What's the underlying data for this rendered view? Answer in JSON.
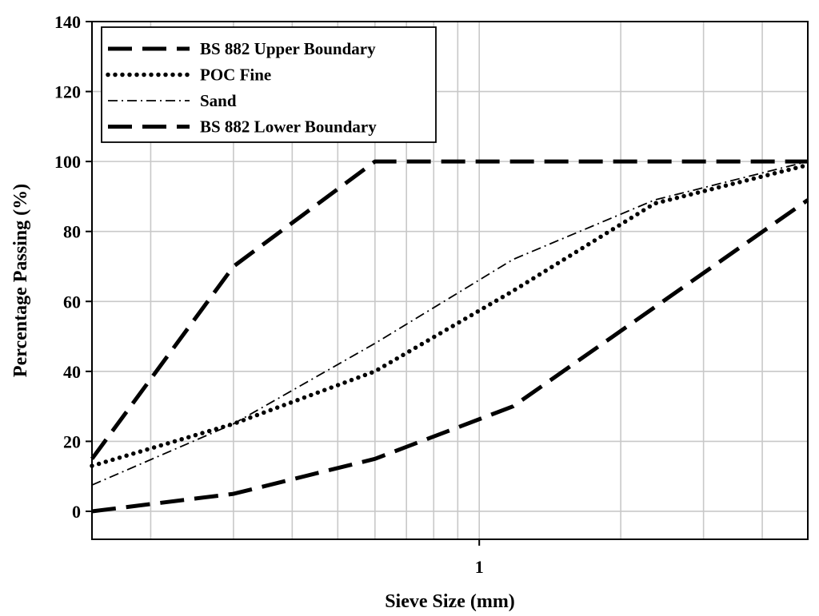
{
  "chart_data": {
    "type": "line",
    "xlabel": "Sieve Size (mm)",
    "ylabel": "Percentage Passing (%)",
    "xscale": "log",
    "xlim": [
      0.15,
      5
    ],
    "ylim": [
      -8,
      140
    ],
    "yticks": [
      0,
      20,
      40,
      60,
      80,
      100,
      120,
      140
    ],
    "xticks": [
      {
        "value": 1,
        "label": "1"
      }
    ],
    "grid": true,
    "legend": "top-left",
    "series": [
      {
        "name": "BS 882 Upper Boundary",
        "style": "long-dash",
        "color": "#000000",
        "x": [
          0.15,
          0.3,
          0.6,
          5
        ],
        "y": [
          15,
          70,
          100,
          100
        ]
      },
      {
        "name": "POC Fine",
        "style": "dotted",
        "color": "#000000",
        "x": [
          0.15,
          0.3,
          0.6,
          1.18,
          2.36,
          5
        ],
        "y": [
          13,
          25,
          40,
          63,
          88,
          99
        ]
      },
      {
        "name": "Sand",
        "style": "dash-dot",
        "color": "#000000",
        "x": [
          0.15,
          0.3,
          0.6,
          1.18,
          2.36,
          5
        ],
        "y": [
          7.5,
          25,
          48,
          72,
          89,
          100
        ]
      },
      {
        "name": "BS 882 Lower Boundary",
        "style": "long-dash",
        "color": "#000000",
        "x": [
          0.15,
          0.3,
          0.6,
          1.18,
          5
        ],
        "y": [
          0,
          5,
          15,
          30,
          89
        ]
      }
    ]
  }
}
